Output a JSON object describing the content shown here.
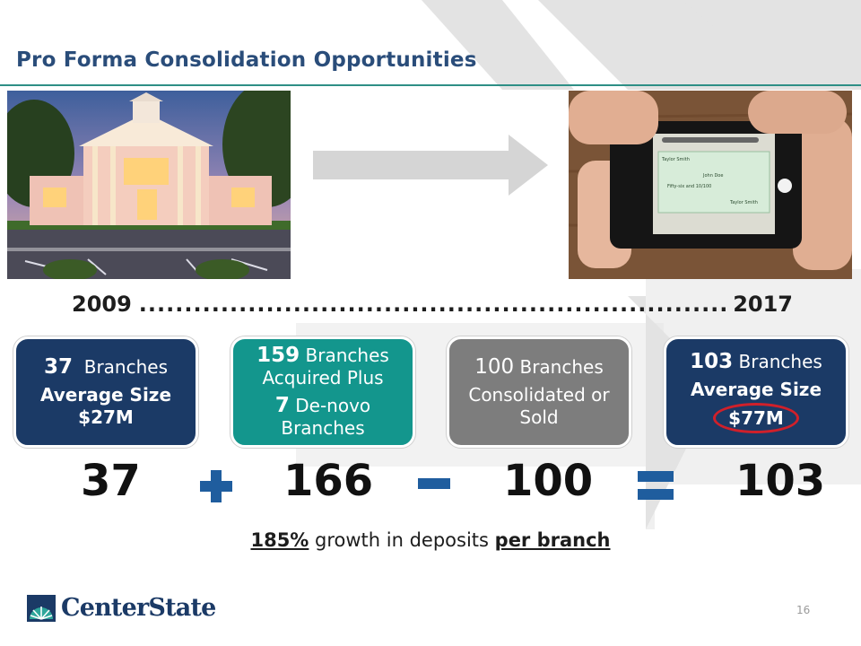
{
  "slide": {
    "title": "Pro Forma Consolidation Opportunities",
    "page_number": "16"
  },
  "timeline": {
    "start_year": "2009",
    "end_year": "2017",
    "dots": "..........................................................................................."
  },
  "boxes": [
    {
      "num": "37",
      "label": "Branches",
      "sub1": "Average Size",
      "sub2": "$27M",
      "color": "#1b3a66"
    },
    {
      "num": "159",
      "label": "Branches",
      "line2": "Acquired Plus",
      "num2": "7",
      "label2": "De-novo",
      "line4": "Branches",
      "color": "#13968d"
    },
    {
      "num": "100",
      "label": "Branches",
      "line2": "Consolidated or",
      "line3": "Sold",
      "color": "#7d7d7d"
    },
    {
      "num": "103",
      "label": "Branches",
      "sub1": "Average Size",
      "sub2": "$77M",
      "color": "#1b3a66"
    }
  ],
  "equation": {
    "a": "37",
    "b": "166",
    "c": "100",
    "result": "103",
    "operator_color": "#1f5d9e"
  },
  "growth": {
    "percent": "185%",
    "middle": " growth in deposits ",
    "emphasis": "per branch"
  },
  "logo": {
    "name": "CenterState",
    "icon": "sunrise-logo-icon"
  },
  "colors": {
    "title": "#2a4d7a",
    "rule": "#2e8f86",
    "highlight_circle": "#d0202a"
  }
}
